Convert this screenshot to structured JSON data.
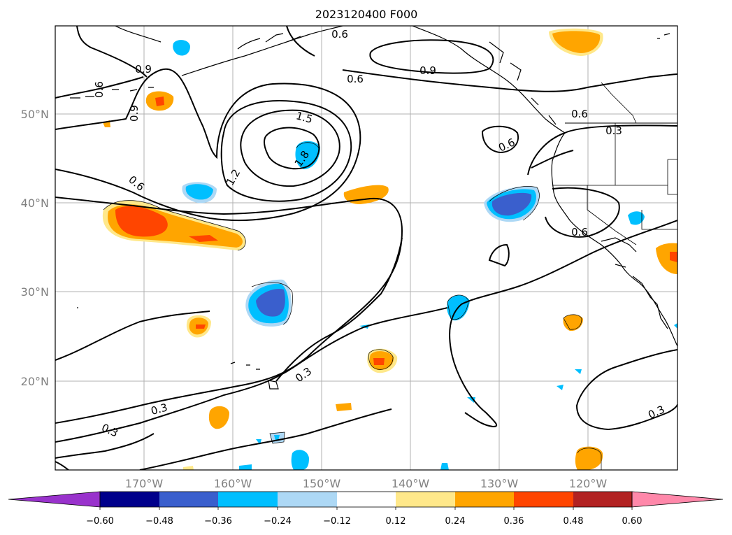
{
  "title": "2023120400 F000",
  "map": {
    "lat_labels": [
      "50°N",
      "40°N",
      "30°N",
      "20°N"
    ],
    "lon_labels": [
      "170°W",
      "160°W",
      "150°W",
      "140°W",
      "130°W",
      "120°W"
    ],
    "contour_labels": [
      "0.6",
      "0.9",
      "0.6",
      "0.9",
      "0.9",
      "0.6",
      "1.5",
      "1.2",
      "1.8",
      "0.6",
      "0.6",
      "0.3",
      "0.6",
      "0.3",
      "0.3",
      "0.3",
      "0.3",
      "0.6"
    ]
  },
  "colorbar": {
    "ticks": [
      "−0.60",
      "−0.48",
      "−0.36",
      "−0.24",
      "−0.12",
      "0.12",
      "0.24",
      "0.36",
      "0.48",
      "0.60"
    ],
    "colors": {
      "under": "#9932cc",
      "bins": [
        "#00008b",
        "#3a5fcd",
        "#00bfff",
        "#add8f5",
        "#ffffff",
        "#ffe88a",
        "#ffa500",
        "#ff4500",
        "#b22222"
      ],
      "over": "#ff88aa"
    }
  },
  "colors": {
    "grid": "#b0b0b0",
    "contour": "#000000",
    "label": "#808080"
  }
}
